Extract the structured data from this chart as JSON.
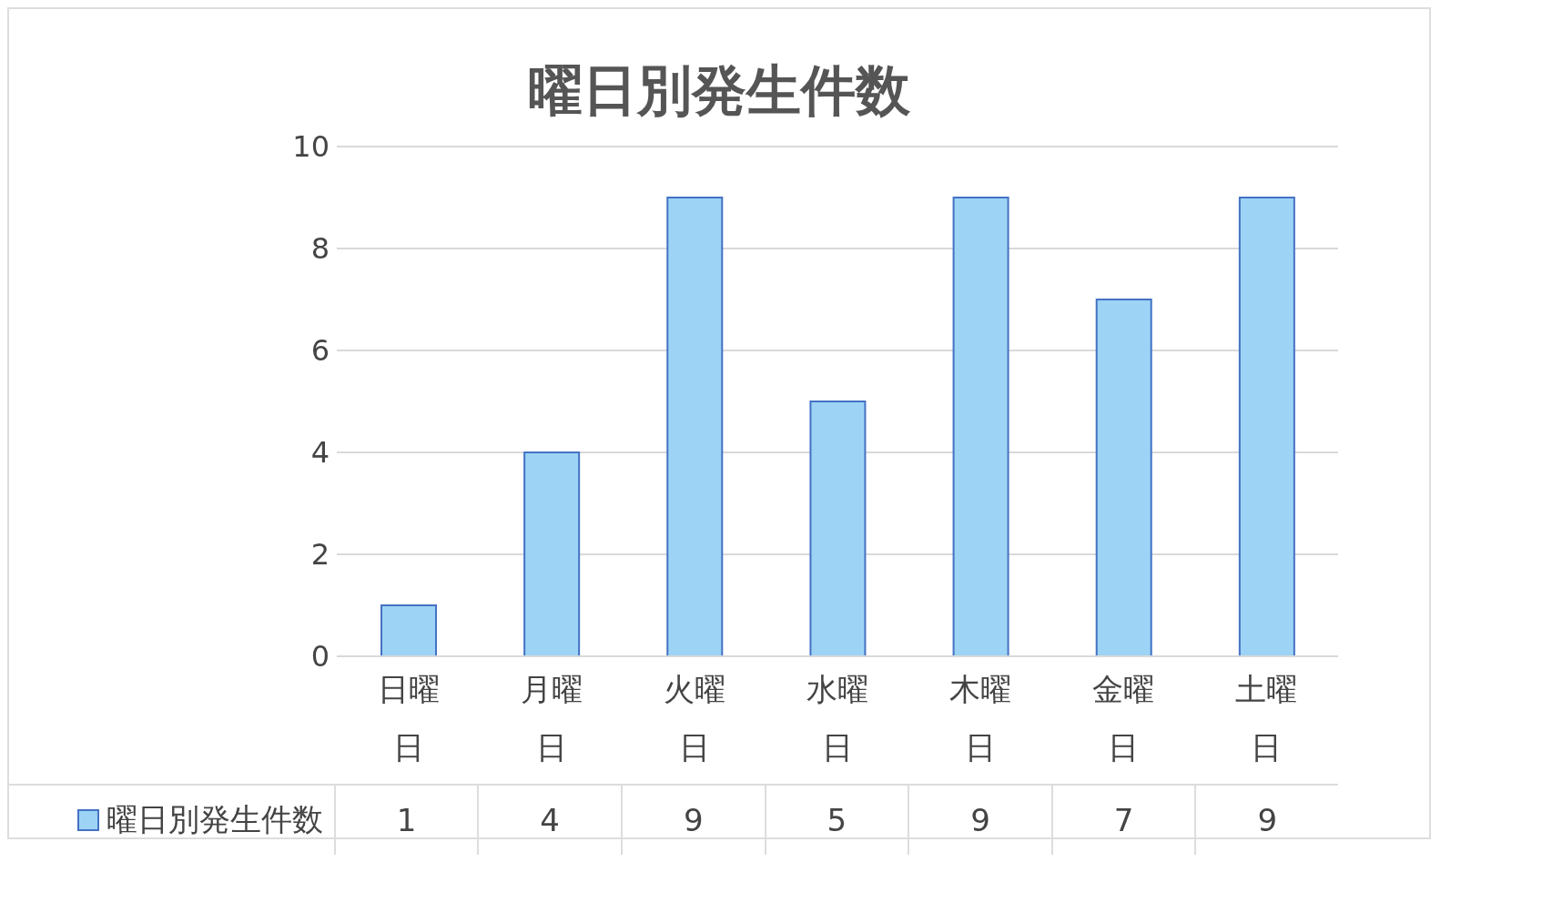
{
  "chart_data": {
    "type": "bar",
    "title": "曜日別発生件数",
    "categories": [
      "日曜日",
      "月曜日",
      "火曜日",
      "水曜日",
      "木曜日",
      "金曜日",
      "土曜日"
    ],
    "series": [
      {
        "name": "曜日別発生件数",
        "color": "#9dd3f5",
        "values": [
          1,
          4,
          9,
          5,
          9,
          7,
          9
        ]
      }
    ],
    "ylim": [
      0,
      10
    ],
    "yticks": [
      0,
      2,
      4,
      6,
      8,
      10
    ],
    "grid": "y",
    "legend": "bottom",
    "data_labels": true
  }
}
